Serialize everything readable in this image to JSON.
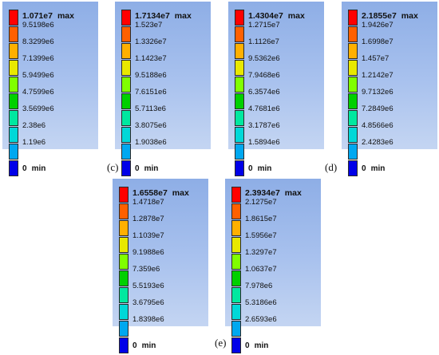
{
  "colors": [
    "#ff0000",
    "#ff6000",
    "#ffb000",
    "#e8e800",
    "#80ff00",
    "#00d000",
    "#00e8a0",
    "#00d8d8",
    "#00a8f0",
    "#0000e8"
  ],
  "panels": [
    {
      "max_value": "1.071e7",
      "max_word": "max",
      "ticks": [
        "9.5198e6",
        "8.3299e6",
        "7.1399e6",
        "5.9499e6",
        "4.7599e6",
        "3.5699e6",
        "2.38e6",
        "1.19e6"
      ],
      "min_value": "0",
      "min_word": "min"
    },
    {
      "max_value": "1.7134e7",
      "max_word": "max",
      "ticks": [
        "1.523e7",
        "1.3326e7",
        "1.1423e7",
        "9.5188e6",
        "7.6151e6",
        "5.7113e6",
        "3.8075e6",
        "1.9038e6"
      ],
      "min_value": "0",
      "min_word": "min"
    },
    {
      "max_value": "1.4304e7",
      "max_word": "max",
      "ticks": [
        "1.2715e7",
        "1.1126e7",
        "9.5362e6",
        "7.9468e6",
        "6.3574e6",
        "4.7681e6",
        "3.1787e6",
        "1.5894e6"
      ],
      "min_value": "0",
      "min_word": "min"
    },
    {
      "max_value": "2.1855e7",
      "max_word": "max",
      "ticks": [
        "1.9426e7",
        "1.6998e7",
        "1.457e7",
        "1.2142e7",
        "9.7132e6",
        "7.2849e6",
        "4.8566e6",
        "2.4283e6"
      ],
      "min_value": "0",
      "min_word": "min"
    },
    {
      "max_value": "1.6558e7",
      "max_word": "max",
      "ticks": [
        "1.4718e7",
        "1.2878e7",
        "1.1039e7",
        "9.1988e6",
        "7.359e6",
        "5.5193e6",
        "3.6795e6",
        "1.8398e6"
      ],
      "min_value": "0",
      "min_word": "min"
    },
    {
      "max_value": "2.3934e7",
      "max_word": "max",
      "ticks": [
        "2.1275e7",
        "1.8615e7",
        "1.5956e7",
        "1.3297e7",
        "1.0637e7",
        "7.978e6",
        "5.3186e6",
        "2.6593e6"
      ],
      "min_value": "0",
      "min_word": "min"
    }
  ],
  "captions": {
    "c": "(c)",
    "d": "(d)",
    "e": "(e)"
  }
}
